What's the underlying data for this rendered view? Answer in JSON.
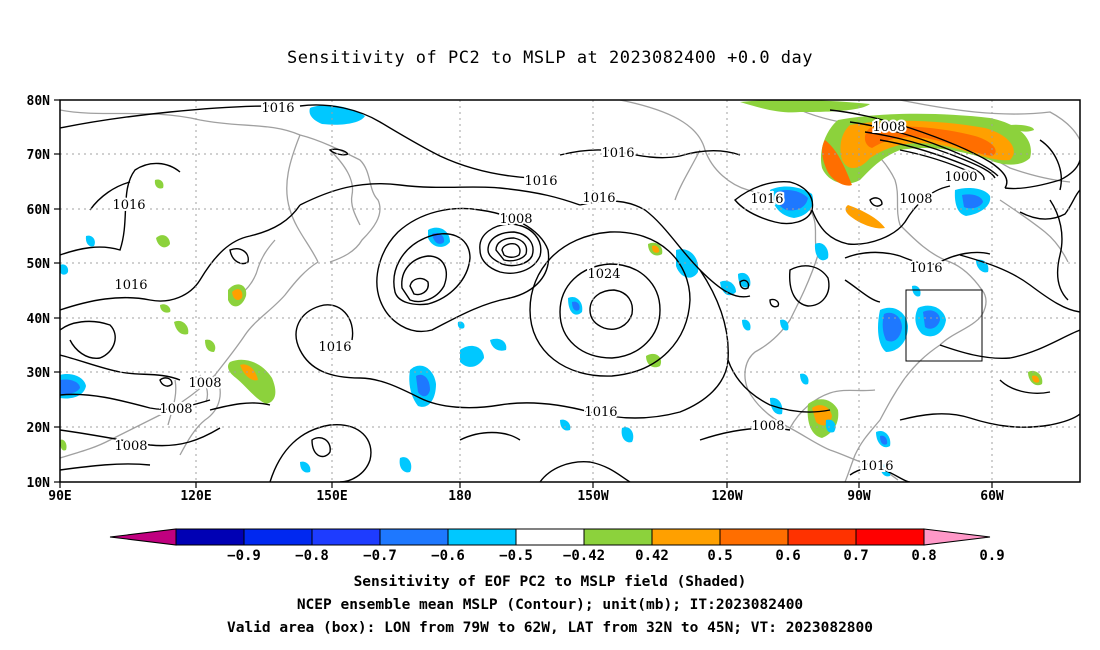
{
  "title": "Sensitivity of PC2 to MSLP at 2023082400 +0.0 day",
  "map": {
    "lon_labels": [
      "90E",
      "120E",
      "150E",
      "180",
      "150W",
      "120W",
      "90W",
      "60W"
    ],
    "lat_labels": [
      "80N",
      "70N",
      "60N",
      "50N",
      "40N",
      "30N",
      "20N",
      "10N"
    ],
    "contour_labels": [
      "1016",
      "1016",
      "1016",
      "1016",
      "1016",
      "1016",
      "1016",
      "1016",
      "1016",
      "1016",
      "1008",
      "1008",
      "1008",
      "1008",
      "1008",
      "1008",
      "1008",
      "1000",
      "1024",
      "1016"
    ],
    "valid_box": {
      "lon_west": "79W",
      "lon_east": "62W",
      "lat_south": "32N",
      "lat_north": "45N"
    }
  },
  "colorbar": {
    "labels": [
      "-0.9",
      "-0.8",
      "-0.7",
      "-0.6",
      "-0.5",
      "-0.42",
      "0.42",
      "0.5",
      "0.6",
      "0.7",
      "0.8",
      "0.9"
    ],
    "colors": [
      "#c0007f",
      "#0000b4",
      "#0028f0",
      "#1e3cff",
      "#1e78ff",
      "#00c8ff",
      "#ffffff",
      "#8cd23c",
      "#ffa000",
      "#ff6e00",
      "#ff3200",
      "#ff0000",
      "#ff98c8"
    ]
  },
  "captions": {
    "line1": "Sensitivity of EOF PC2 to MSLP field (Shaded)",
    "line2": "NCEP ensemble mean MSLP (Contour); unit(mb); IT:2023082400",
    "line3": "Valid area (box): LON from 79W to 62W, LAT from 32N to 45N; VT: 2023082800"
  }
}
